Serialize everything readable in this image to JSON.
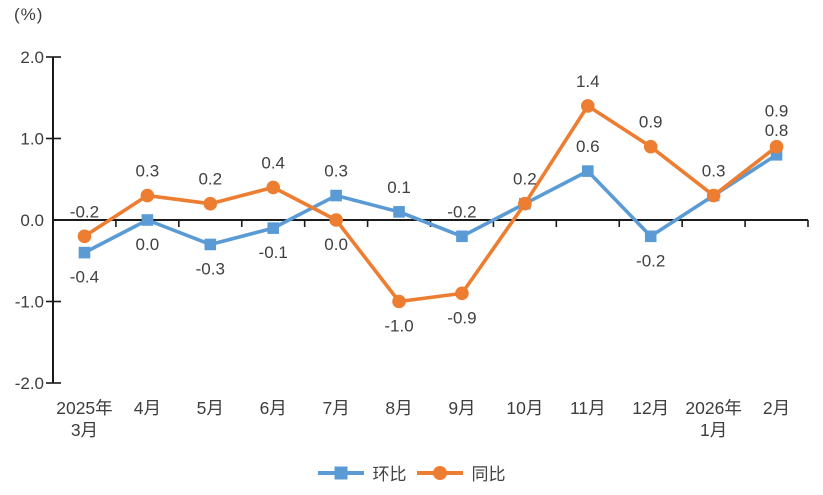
{
  "chart_data": {
    "type": "line",
    "title": "",
    "ylabel": "(%)",
    "ylim": [
      -2.0,
      2.0
    ],
    "ytick_labels": [
      "2.0",
      "1.0",
      "0.0",
      "-1.0",
      "-2.0"
    ],
    "grid": false,
    "legend_position": "bottom",
    "categories": [
      [
        "2025年",
        "3月"
      ],
      [
        "4月"
      ],
      [
        "5月"
      ],
      [
        "6月"
      ],
      [
        "7月"
      ],
      [
        "8月"
      ],
      [
        "9月"
      ],
      [
        "10月"
      ],
      [
        "11月"
      ],
      [
        "12月"
      ],
      [
        "2026年",
        "1月"
      ],
      [
        "2月"
      ]
    ],
    "series": [
      {
        "name": "环比",
        "marker": "square",
        "color": "#5B9BD5",
        "values": [
          -0.4,
          0.0,
          -0.3,
          -0.1,
          0.3,
          0.1,
          -0.2,
          0.2,
          0.6,
          -0.2,
          0.3,
          0.8
        ],
        "label_pos": [
          "below",
          "below",
          "below",
          "below",
          "above",
          "above",
          "above",
          "none",
          "above",
          "below",
          "none",
          "above"
        ]
      },
      {
        "name": "同比",
        "marker": "circle",
        "color": "#ED7D31",
        "values": [
          -0.2,
          0.3,
          0.2,
          0.4,
          0.0,
          -1.0,
          -0.9,
          0.2,
          1.4,
          0.9,
          0.3,
          0.9
        ],
        "label_pos": [
          "above",
          "above",
          "above",
          "above",
          "below",
          "below",
          "below",
          "above",
          "above",
          "above",
          "above",
          "above_stack"
        ]
      }
    ],
    "colors": {
      "axis": "#1a1a1a",
      "data_label": "#404040",
      "tick_label": "#3d3d3d",
      "background": "#ffffff"
    }
  }
}
